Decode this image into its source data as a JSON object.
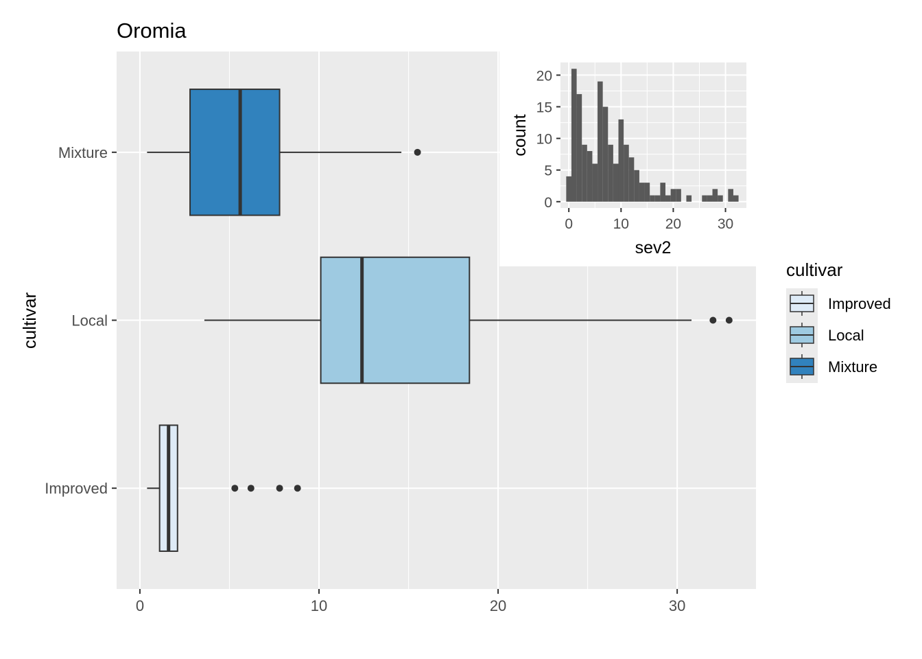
{
  "chart_data": [
    {
      "type": "boxplot",
      "title": "Oromia",
      "xlabel": "",
      "ylabel": "cultivar",
      "orientation": "horizontal",
      "xlim": [
        -1.3,
        34.4
      ],
      "xticks": [
        0,
        10,
        20,
        30
      ],
      "grid": true,
      "categories": [
        "Improved",
        "Local",
        "Mixture"
      ],
      "boxes": [
        {
          "category": "Improved",
          "fill": "#deebf7",
          "whisker_low": 0.4,
          "q1": 1.1,
          "median": 1.6,
          "q3": 2.1,
          "whisker_high": 2.1,
          "outliers": [
            5.3,
            6.2,
            7.8,
            8.8
          ]
        },
        {
          "category": "Local",
          "fill": "#9ecae1",
          "whisker_low": 3.6,
          "q1": 10.1,
          "median": 12.4,
          "q3": 18.4,
          "whisker_high": 30.8,
          "outliers": [
            32.0,
            32.9
          ]
        },
        {
          "category": "Mixture",
          "fill": "#3182bd",
          "whisker_low": 0.4,
          "q1": 2.8,
          "median": 5.6,
          "q3": 7.8,
          "whisker_high": 14.6,
          "outliers": [
            15.5
          ]
        }
      ],
      "legend": {
        "title": "cultivar",
        "position": "right",
        "entries": [
          "Improved",
          "Local",
          "Mixture"
        ]
      }
    },
    {
      "type": "histogram",
      "title": "",
      "xlabel": "sev2",
      "ylabel": "count",
      "xlim": [
        -1.6,
        34.0
      ],
      "ylim": [
        -1.0,
        22.0
      ],
      "xticks": [
        0,
        10,
        20,
        30
      ],
      "yticks": [
        0,
        5,
        10,
        15,
        20
      ],
      "grid": true,
      "bar_color": "#595959",
      "bin_width": 1,
      "bin_starts": [
        -0.5,
        0.5,
        1.5,
        2.5,
        3.5,
        4.5,
        5.5,
        6.5,
        7.5,
        8.5,
        9.5,
        10.5,
        11.5,
        12.5,
        13.5,
        14.5,
        15.5,
        16.5,
        17.5,
        18.5,
        19.5,
        20.5,
        21.5,
        22.5,
        23.5,
        24.5,
        25.5,
        26.5,
        27.5,
        28.5,
        29.5,
        30.5,
        31.5
      ],
      "counts": [
        4,
        21,
        17,
        9,
        8,
        6,
        19,
        15,
        9,
        6,
        13,
        9,
        7,
        5,
        3,
        3,
        1,
        1,
        3,
        1,
        2,
        2,
        0,
        1,
        0,
        0,
        1,
        1,
        2,
        1,
        0,
        2,
        1
      ]
    }
  ],
  "colors": {
    "panel_bg": "#ebebeb",
    "grid": "#ffffff",
    "box_stroke": "#333333"
  }
}
